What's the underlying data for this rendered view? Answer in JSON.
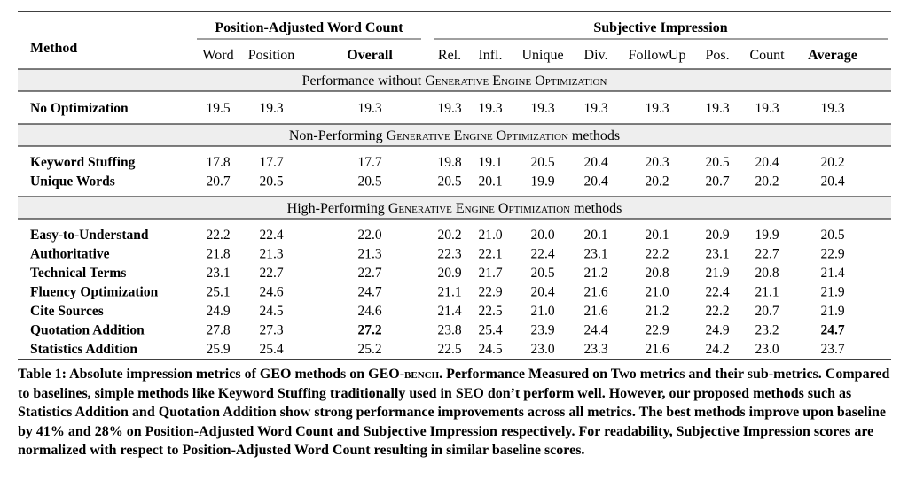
{
  "table": {
    "method_header": "Method",
    "group_headers": [
      "Position-Adjusted Word Count",
      "Subjective Impression"
    ],
    "columns": [
      "Word",
      "Position",
      "Overall",
      "Rel.",
      "Infl.",
      "Unique",
      "Div.",
      "FollowUp",
      "Pos.",
      "Count",
      "Average"
    ],
    "bold_columns": [
      "Overall",
      "Average"
    ],
    "sections": [
      {
        "title_prefix": "Performance without ",
        "title_sc": "Generative Engine Optimization",
        "title_suffix": "",
        "rows": [
          {
            "method": "No Optimization",
            "values": [
              "19.5",
              "19.3",
              "19.3",
              "19.3",
              "19.3",
              "19.3",
              "19.3",
              "19.3",
              "19.3",
              "19.3",
              "19.3"
            ],
            "bold": []
          }
        ]
      },
      {
        "title_prefix": "Non-Performing ",
        "title_sc": "Generative Engine Optimization",
        "title_suffix": " methods",
        "rows": [
          {
            "method": "Keyword Stuffing",
            "values": [
              "17.8",
              "17.7",
              "17.7",
              "19.8",
              "19.1",
              "20.5",
              "20.4",
              "20.3",
              "20.5",
              "20.4",
              "20.2"
            ],
            "bold": []
          },
          {
            "method": "Unique Words",
            "values": [
              "20.7",
              "20.5",
              "20.5",
              "20.5",
              "20.1",
              "19.9",
              "20.4",
              "20.2",
              "20.7",
              "20.2",
              "20.4"
            ],
            "bold": []
          }
        ]
      },
      {
        "title_prefix": "High-Performing ",
        "title_sc": "Generative Engine Optimization",
        "title_suffix": " methods",
        "rows": [
          {
            "method": "Easy-to-Understand",
            "values": [
              "22.2",
              "22.4",
              "22.0",
              "20.2",
              "21.0",
              "20.0",
              "20.1",
              "20.1",
              "20.9",
              "19.9",
              "20.5"
            ],
            "bold": []
          },
          {
            "method": "Authoritative",
            "values": [
              "21.8",
              "21.3",
              "21.3",
              "22.3",
              "22.1",
              "22.4",
              "23.1",
              "22.2",
              "23.1",
              "22.7",
              "22.9"
            ],
            "bold": []
          },
          {
            "method": "Technical Terms",
            "values": [
              "23.1",
              "22.7",
              "22.7",
              "20.9",
              "21.7",
              "20.5",
              "21.2",
              "20.8",
              "21.9",
              "20.8",
              "21.4"
            ],
            "bold": []
          },
          {
            "method": "Fluency Optimization",
            "values": [
              "25.1",
              "24.6",
              "24.7",
              "21.1",
              "22.9",
              "20.4",
              "21.6",
              "21.0",
              "22.4",
              "21.1",
              "21.9"
            ],
            "bold": []
          },
          {
            "method": "Cite Sources",
            "values": [
              "24.9",
              "24.5",
              "24.6",
              "21.4",
              "22.5",
              "21.0",
              "21.6",
              "21.2",
              "22.2",
              "20.7",
              "21.9"
            ],
            "bold": []
          },
          {
            "method": "Quotation Addition",
            "values": [
              "27.8",
              "27.3",
              "27.2",
              "23.8",
              "25.4",
              "23.9",
              "24.4",
              "22.9",
              "24.9",
              "23.2",
              "24.7"
            ],
            "bold": [
              2,
              10
            ]
          },
          {
            "method": "Statistics Addition",
            "values": [
              "25.9",
              "25.4",
              "25.2",
              "22.5",
              "24.5",
              "23.0",
              "23.3",
              "21.6",
              "24.2",
              "23.0",
              "23.7"
            ],
            "bold": []
          }
        ]
      }
    ]
  },
  "caption": {
    "part1": "Table 1: Absolute impression metrics of GEO methods on GEO-",
    "sc": "bench",
    "part2": ". Performance Measured on Two metrics and their sub-metrics. Compared to baselines, simple methods like Keyword Stuffing traditionally used in SEO don’t perform well. However, our proposed methods such as Statistics Addition and Quotation Addition show strong performance improvements across all metrics. The best methods improve upon baseline by 41% and 28% on Position-Adjusted Word Count and Subjective Impression respectively. For readability, Subjective Impression scores are normalized with respect to Position-Adjusted Word Count resulting in similar baseline scores."
  }
}
